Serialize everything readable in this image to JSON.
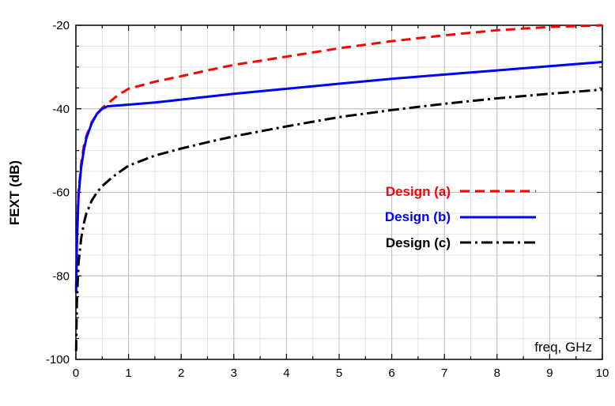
{
  "chart_data": {
    "type": "line",
    "ylabel": "FEXT (dB)",
    "xlabel": "freq, GHz",
    "xlim": [
      0,
      10
    ],
    "ylim": [
      -100,
      -20
    ],
    "x_ticks": [
      0,
      1,
      2,
      3,
      4,
      5,
      6,
      7,
      8,
      9,
      10
    ],
    "y_ticks": [
      -100,
      -80,
      -60,
      -40,
      -20
    ],
    "x_minor_step": 0.5,
    "y_minor_step": 5,
    "grid": true,
    "legend_position": "center-right",
    "series": [
      {
        "name": "Design (a)",
        "color": "#ff0000",
        "dash": "dashed",
        "x": [
          0.005,
          0.02,
          0.05,
          0.1,
          0.15,
          0.2,
          0.3,
          0.4,
          0.5,
          0.6,
          0.8,
          1,
          1.5,
          2,
          2.5,
          3,
          4,
          5,
          6,
          7,
          8,
          9,
          10
        ],
        "y": [
          -83,
          -71,
          -60,
          -53,
          -49,
          -46.5,
          -43.2,
          -41.2,
          -39.8,
          -38.8,
          -36.7,
          -35.2,
          -33.5,
          -32.2,
          -30.8,
          -29.5,
          -27.5,
          -25.5,
          -23.8,
          -22.4,
          -21.2,
          -20.4,
          -20
        ]
      },
      {
        "name": "Design (b)",
        "color": "#0000ff",
        "dash": "solid",
        "x": [
          0.005,
          0.02,
          0.05,
          0.1,
          0.15,
          0.2,
          0.3,
          0.4,
          0.5,
          0.6,
          0.8,
          1,
          1.5,
          2,
          3,
          4,
          5,
          6,
          7,
          8,
          9,
          10
        ],
        "y": [
          -84,
          -72,
          -61,
          -54,
          -50,
          -47,
          -43.5,
          -41.2,
          -40,
          -39.4,
          -39.2,
          -39,
          -38.5,
          -37.8,
          -36.4,
          -35.2,
          -34,
          -32.8,
          -31.8,
          -30.8,
          -29.8,
          -28.8
        ]
      },
      {
        "name": "Design (c)",
        "color": "#000000",
        "dash": "dashdot",
        "x": [
          0.005,
          0.02,
          0.05,
          0.1,
          0.15,
          0.2,
          0.3,
          0.4,
          0.5,
          0.7,
          1,
          1.5,
          2,
          2.5,
          3,
          4,
          5,
          6,
          7,
          8,
          9,
          10
        ],
        "y": [
          -98,
          -86,
          -77,
          -71,
          -67.5,
          -65,
          -62,
          -60,
          -58.5,
          -56.3,
          -53.6,
          -51.2,
          -49.5,
          -48,
          -46.6,
          -44.2,
          -42,
          -40.3,
          -38.8,
          -37.5,
          -36.4,
          -35.4
        ]
      }
    ]
  }
}
